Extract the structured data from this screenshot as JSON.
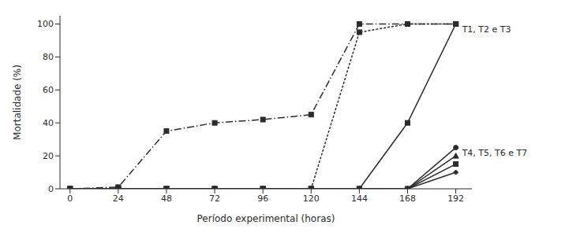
{
  "chart_data": {
    "type": "line",
    "x": [
      0,
      24,
      48,
      72,
      96,
      120,
      144,
      168,
      192
    ],
    "series": [
      {
        "name": "T2",
        "values": [
          0,
          1,
          35,
          40,
          42,
          45,
          100,
          100,
          100
        ],
        "line_style": "dashdot",
        "marker": "square"
      },
      {
        "name": "T3",
        "values": [
          0,
          0,
          0,
          0,
          0,
          0,
          95,
          100,
          100
        ],
        "line_style": "dotted",
        "marker": "square"
      },
      {
        "name": "T1",
        "values": [
          0,
          0,
          0,
          0,
          0,
          0,
          0,
          40,
          100
        ],
        "line_style": "solid",
        "marker": "square"
      },
      {
        "name": "T4",
        "values": [
          0,
          0,
          0,
          0,
          0,
          0,
          0,
          0,
          25
        ],
        "line_style": "solid",
        "marker": "circle"
      },
      {
        "name": "T5",
        "values": [
          0,
          0,
          0,
          0,
          0,
          0,
          0,
          0,
          20
        ],
        "line_style": "solid",
        "marker": "triangle"
      },
      {
        "name": "T6",
        "values": [
          0,
          0,
          0,
          0,
          0,
          0,
          0,
          0,
          15
        ],
        "line_style": "solid",
        "marker": "square"
      },
      {
        "name": "T7",
        "values": [
          0,
          0,
          0,
          0,
          0,
          0,
          0,
          0,
          10
        ],
        "line_style": "solid",
        "marker": "diamond"
      }
    ],
    "annotations": [
      {
        "text": "T1, T2 e T3",
        "x": 192,
        "y": 97
      },
      {
        "text": "T4, T5, T6 e T7",
        "x": 192,
        "y": 22
      }
    ],
    "xlabel": "Período experimental (horas)",
    "ylabel": "Mortalidade (%)",
    "xlim": [
      -5,
      200
    ],
    "xticks": [
      0,
      24,
      48,
      72,
      96,
      120,
      144,
      168,
      192
    ],
    "ylim": [
      0,
      105
    ],
    "yticks": [
      0,
      20,
      40,
      60,
      80,
      100
    ],
    "color": "#2b2b2b",
    "grid": false
  }
}
